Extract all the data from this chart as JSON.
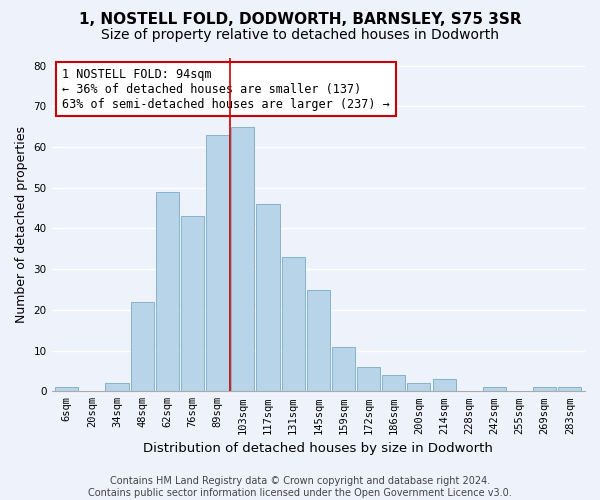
{
  "title": "1, NOSTELL FOLD, DODWORTH, BARNSLEY, S75 3SR",
  "subtitle": "Size of property relative to detached houses in Dodworth",
  "xlabel": "Distribution of detached houses by size in Dodworth",
  "ylabel": "Number of detached properties",
  "bar_labels": [
    "6sqm",
    "20sqm",
    "34sqm",
    "48sqm",
    "62sqm",
    "76sqm",
    "89sqm",
    "103sqm",
    "117sqm",
    "131sqm",
    "145sqm",
    "159sqm",
    "172sqm",
    "186sqm",
    "200sqm",
    "214sqm",
    "228sqm",
    "242sqm",
    "255sqm",
    "269sqm",
    "283sqm"
  ],
  "bar_values": [
    1,
    0,
    2,
    22,
    49,
    43,
    63,
    65,
    46,
    33,
    25,
    11,
    6,
    4,
    2,
    3,
    0,
    1,
    0,
    1,
    1
  ],
  "bar_color": "#b8d4e8",
  "bar_edge_color": "#7aaac8",
  "vline_x_index": 6.5,
  "vline_color": "#cc0000",
  "annotation_text": "1 NOSTELL FOLD: 94sqm\n← 36% of detached houses are smaller (137)\n63% of semi-detached houses are larger (237) →",
  "annotation_box_color": "#ffffff",
  "annotation_box_edge_color": "#cc0000",
  "ylim": [
    0,
    82
  ],
  "yticks": [
    0,
    10,
    20,
    30,
    40,
    50,
    60,
    70,
    80
  ],
  "background_color": "#eef2fb",
  "footer_line1": "Contains HM Land Registry data © Crown copyright and database right 2024.",
  "footer_line2": "Contains public sector information licensed under the Open Government Licence v3.0.",
  "title_fontsize": 11,
  "subtitle_fontsize": 10,
  "xlabel_fontsize": 9.5,
  "ylabel_fontsize": 9,
  "tick_fontsize": 7.5,
  "annotation_fontsize": 8.5,
  "footer_fontsize": 7
}
